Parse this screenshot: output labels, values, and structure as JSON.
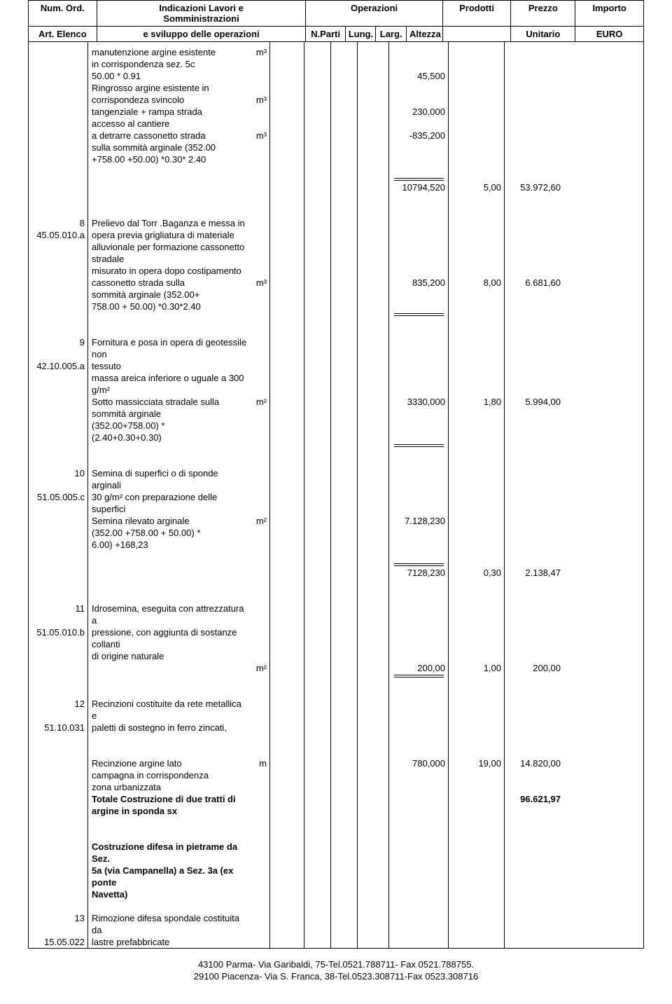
{
  "header": {
    "num_ord": "Num. Ord.",
    "indicazioni1": "Indicazioni Lavori e",
    "indicazioni2": "Somministrazioni",
    "operazioni": "Operazioni",
    "prodotti": "Prodotti",
    "prezzo": "Prezzo",
    "importo": "Importo",
    "art_elenco": "Art. Elenco",
    "sviluppo": "e sviluppo delle operazioni",
    "nparti": "N.Parti",
    "lung": "Lung.",
    "larg": "Larg.",
    "altezza": "Altezza",
    "unitario": "Unitario",
    "euro": "EURO"
  },
  "rows": [
    {
      "ind": "manutenzione argine esistente",
      "unit": "m³"
    },
    {
      "ind": "in corrispondenza sez. 5c"
    },
    {
      "ind": "50.00 * 0.91",
      "prod": "45,500"
    },
    {
      "ind": "Ringrosso argine esistente in"
    },
    {
      "ind": "corrispondeza svincolo",
      "unit": "m³"
    },
    {
      "ind": "tangenziale + rampa strada",
      "prod": "230,000"
    },
    {
      "ind": "accesso al cantiere"
    },
    {
      "ind": "a detrarre cassonetto strada",
      "unit": "m³",
      "prod": "-835,200"
    },
    {
      "ind": "sulla sommità arginale  (352.00"
    },
    {
      "ind": "+758.00 +50.00) *0.30* 2.40"
    },
    {
      "spacer": true
    },
    {
      "prod": "10794,520",
      "prez": "5,00",
      "imp": "53.972,60",
      "dline_above_prod": true
    },
    {
      "spacer": true
    },
    {
      "spacer": true
    },
    {
      "num": "8",
      "ind": "Prelievo dal Torr .Baganza e messa in"
    },
    {
      "num": "45.05.010.a",
      "ind": "opera previa grigliatura di materiale"
    },
    {
      "ind": "alluvionale  per formazione cassonetto"
    },
    {
      "ind": "stradale"
    },
    {
      "ind": "misurato in opera dopo costipamento"
    },
    {
      "ind": "cassonetto strada sulla",
      "unit": "m³",
      "prod": "835,200",
      "prez": "8,00",
      "imp": "6.681,60"
    },
    {
      "ind": "sommità arginale (352.00+"
    },
    {
      "ind": "758.00 + 50.00) *0.30*2.40"
    },
    {
      "dline_in_prod": true
    },
    {
      "spacer": true
    },
    {
      "num": "9",
      "ind": "Fornitura e posa in opera di geotessile non"
    },
    {
      "num": "42.10.005.a",
      "ind": "tessuto"
    },
    {
      "ind": "massa areica inferiore o uguale a 300 g/m²"
    },
    {
      "ind": "Sotto massicciata stradale sulla",
      "unit": "m²",
      "prod": "3330,000",
      "prez": "1,80",
      "imp": "5.994,00"
    },
    {
      "ind": "sommità arginale"
    },
    {
      "ind": "(352.00+758.00) *"
    },
    {
      "ind": "(2.40+0.30+0.30)"
    },
    {
      "dline_in_prod": true
    },
    {
      "spacer": true
    },
    {
      "num": "10",
      "ind": "Semina di superfici o di sponde arginali"
    },
    {
      "num": "51.05.005.c",
      "ind": "30 g/m² con preparazione delle superfici"
    },
    {
      "ind": "Semina rilevato arginale",
      "unit": "m²",
      "prod": "7.128,230"
    },
    {
      "ind": "(352.00 +758.00 + 50.00)  *"
    },
    {
      "ind": "6.00) +168,23"
    },
    {
      "spacer": true
    },
    {
      "prod": "7128,230",
      "prez": "0,30",
      "imp": "2.138,47",
      "dline_above_prod": true
    },
    {
      "spacer": true
    },
    {
      "spacer": true
    },
    {
      "num": "11",
      "ind": "Idrosemina, eseguita con attrezzatura a"
    },
    {
      "num": "51.05.010.b",
      "ind": "pressione, con aggiunta di sostanze collanti"
    },
    {
      "ind": "di origine naturale"
    },
    {
      "unit": "m²",
      "prod": "200,00",
      "prez": "1,00",
      "imp": "200,00"
    },
    {
      "dline_in_prod": true
    },
    {
      "spacer": true
    },
    {
      "num": "12",
      "ind": "Recinzioni costituite da rete metallica e"
    },
    {
      "num": "51.10.031",
      "ind": "paletti di sostegno in ferro zincati,"
    },
    {
      "spacer": true
    },
    {
      "spacer": true
    },
    {
      "ind": "Recinzione argine lato",
      "unit": "m",
      "prod": "780,000",
      "prez": "19,00",
      "imp": "14.820,00"
    },
    {
      "ind": "campagna in corrispondenza"
    },
    {
      "ind": "zona urbanizzata"
    },
    {
      "ind": "   Totale Costruzione di due tratti di",
      "bold": true,
      "imp": "96.621,97",
      "bold_imp": true
    },
    {
      "ind": "   argine in sponda sx",
      "bold": true
    },
    {
      "spacer": true
    },
    {
      "spacer": true
    },
    {
      "ind": "Costruzione difesa in  pietrame  da Sez.",
      "bold": true
    },
    {
      "ind": "5a (via Campanella)  a Sez. 3a (ex ponte",
      "bold": true
    },
    {
      "ind": "Navetta)",
      "bold": true
    },
    {
      "spacer": true
    },
    {
      "num": "13",
      "ind": "Rimozione difesa  spondale costituita da"
    },
    {
      "num": "15.05.022",
      "ind": "lastre prefabbricate"
    }
  ],
  "footer": {
    "line1": "43100 Parma- Via Garibaldi, 75-Tel.0521.788711- Fax 0521.788755.",
    "line2": "29100 Piacenza- Via S. Franca, 38-Tel.0523.308711-Fax 0523.308716"
  }
}
